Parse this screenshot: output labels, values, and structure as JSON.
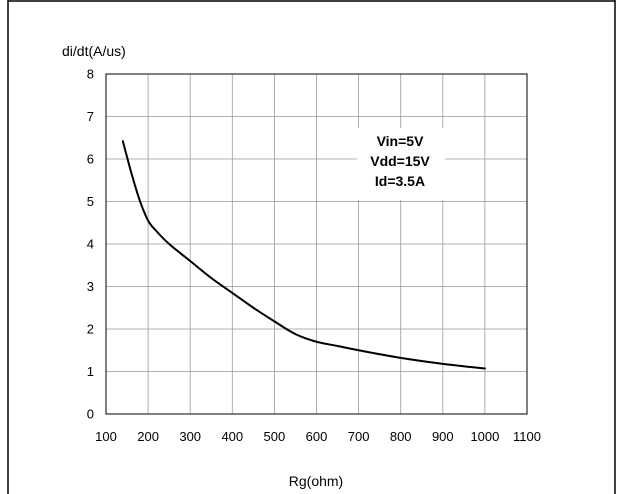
{
  "chart_data": {
    "type": "line",
    "title": "",
    "xlabel": "Rg(ohm)",
    "ylabel": "di/dt(A/us)",
    "xlim": [
      100,
      1100
    ],
    "ylim": [
      0,
      8
    ],
    "xticks": [
      "100",
      "200",
      "300",
      "400",
      "500",
      "600",
      "700",
      "800",
      "900",
      "1000",
      "1100"
    ],
    "yticks": [
      "0",
      "1",
      "2",
      "3",
      "4",
      "5",
      "6",
      "7",
      "8"
    ],
    "grid": true,
    "annotation": [
      "Vin=5V",
      "Vdd=15V",
      "Id=3.5A"
    ],
    "series": [
      {
        "name": "",
        "color": "#000000",
        "x": [
          140,
          160,
          180,
          200,
          220,
          250,
          300,
          350,
          400,
          450,
          500,
          550,
          600,
          650,
          700,
          800,
          900,
          1000
        ],
        "y": [
          6.42,
          5.68,
          5.03,
          4.55,
          4.3,
          4.0,
          3.6,
          3.2,
          2.85,
          2.5,
          2.18,
          1.88,
          1.7,
          1.6,
          1.5,
          1.32,
          1.18,
          1.07
        ]
      }
    ]
  }
}
